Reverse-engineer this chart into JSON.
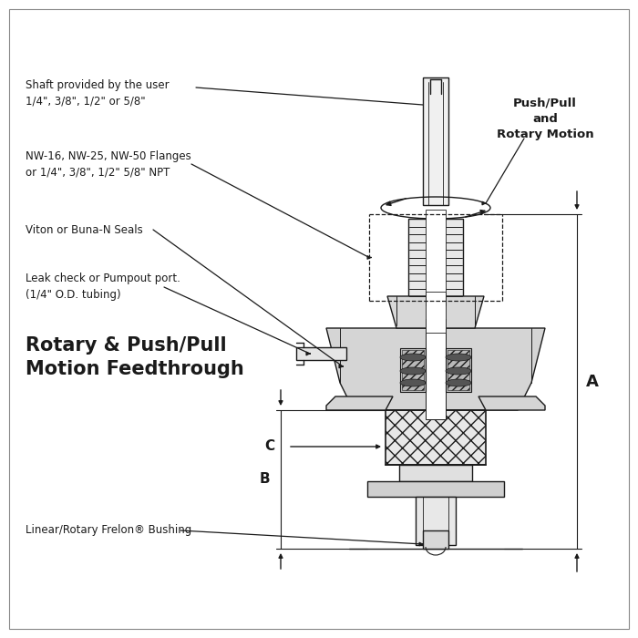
{
  "title": "Rotary & Push/Pull\nMotion Feedthrough",
  "bg_color": "#ffffff",
  "line_color": "#1a1a1a",
  "labels": {
    "shaft": "Shaft provided by the user\n1/4\", 3/8\", 1/2\" or 5/8\"",
    "flanges": "NW-16, NW-25, NW-50 Flanges\nor 1/4\", 3/8\", 1/2\" 5/8\" NPT",
    "seals": "Viton or Buna-N Seals",
    "leak": "Leak check or Pumpout port.\n(1/4\" O.D. tubing)",
    "bushing": "Linear/Rotary Frelon® Bushing",
    "push_pull": "Push/Pull\nand\nRotary Motion",
    "dim_a": "A",
    "dim_b": "B",
    "dim_c": "C"
  },
  "figsize": [
    7.0,
    7.0
  ],
  "dpi": 100
}
